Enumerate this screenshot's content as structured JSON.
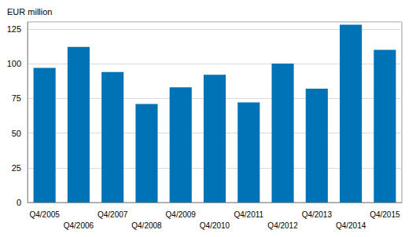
{
  "chart_data": {
    "type": "bar",
    "ylabel": "EUR million",
    "categories": [
      "Q4/2005",
      "Q4/2006",
      "Q4/2007",
      "Q4/2008",
      "Q4/2009",
      "Q4/2010",
      "Q4/2011",
      "Q4/2012",
      "Q4/2013",
      "Q4/2014",
      "Q4/2015"
    ],
    "values": [
      97,
      112,
      94,
      71,
      83,
      92,
      72,
      100,
      82,
      128,
      110
    ],
    "color": "#0073b7",
    "ylim": [
      0,
      130
    ],
    "yticks": [
      0,
      25,
      50,
      75,
      100,
      125
    ],
    "grid": true
  }
}
